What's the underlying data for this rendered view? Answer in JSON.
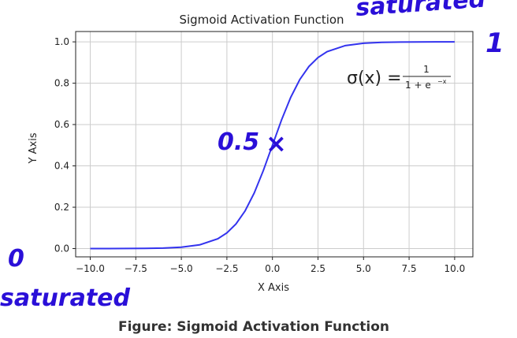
{
  "chart_data": {
    "type": "line",
    "title": "Sigmoid Activation Function",
    "xlabel": "X Axis",
    "ylabel": "Y Axis",
    "xlim": [
      -10.8,
      11.0
    ],
    "ylim": [
      -0.04,
      1.05
    ],
    "x_ticks": [
      "−10.0",
      "−7.5",
      "−5.0",
      "−2.5",
      "0.0",
      "2.5",
      "5.0",
      "7.5",
      "10.0"
    ],
    "x_tick_values": [
      -10,
      -7.5,
      -5,
      -2.5,
      0,
      2.5,
      5,
      7.5,
      10
    ],
    "y_ticks": [
      "0.0",
      "0.2",
      "0.4",
      "0.6",
      "0.8",
      "1.0"
    ],
    "y_tick_values": [
      0.0,
      0.2,
      0.4,
      0.6,
      0.8,
      1.0
    ],
    "grid": true,
    "series": [
      {
        "color": "#3333ee",
        "x": [
          -10,
          -9,
          -8,
          -7,
          -6,
          -5,
          -4,
          -3,
          -2.5,
          -2,
          -1.5,
          -1,
          -0.5,
          0,
          0.5,
          1,
          1.5,
          2,
          2.5,
          3,
          4,
          5,
          6,
          7,
          8,
          9,
          10
        ],
        "y": [
          5e-05,
          0.00012,
          0.00034,
          0.00091,
          0.00247,
          0.00669,
          0.01799,
          0.04743,
          0.07586,
          0.1192,
          0.18243,
          0.26894,
          0.37754,
          0.5,
          0.62246,
          0.73106,
          0.81757,
          0.8808,
          0.92414,
          0.95257,
          0.98201,
          0.99331,
          0.99753,
          0.99909,
          0.99966,
          0.99988,
          0.99995
        ]
      }
    ],
    "formula": {
      "lhs": "σ(x) =",
      "numerator": "1",
      "denominator": "1 + e",
      "exponent": "−x"
    }
  },
  "annotations": {
    "top_right": "saturated",
    "top_right_value": "1",
    "center_value": "0.5",
    "center_mark": "×",
    "bottom_left_value": "0",
    "bottom_left": "saturated"
  },
  "caption": "Figure: Sigmoid Activation Function",
  "colors": {
    "line": "#3333ee",
    "ink": "#2a0fd8",
    "grid": "#cccccc",
    "frame": "#222222"
  }
}
